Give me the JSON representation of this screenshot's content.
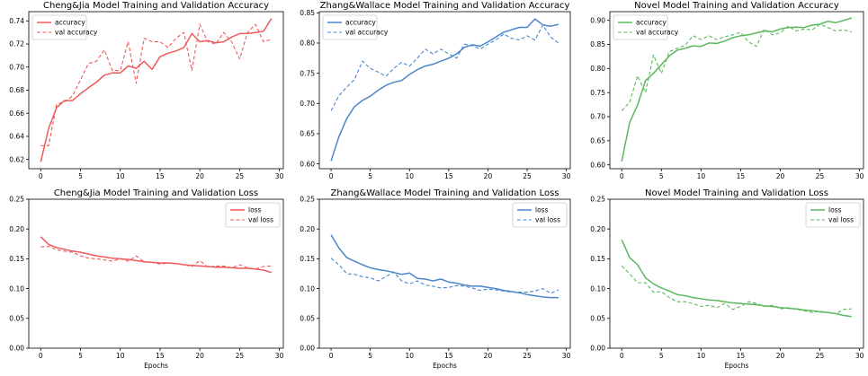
{
  "chart_data": [
    {
      "type": "line",
      "title": "Cheng&Jia Model Training and Validation Accuracy",
      "xlabel": "",
      "ylabel": "",
      "xlim": [
        -1.5,
        30.5
      ],
      "ylim": [
        0.612,
        0.748
      ],
      "xticks": [
        0,
        5,
        10,
        15,
        20,
        25,
        30
      ],
      "yticks": [
        0.62,
        0.64,
        0.66,
        0.68,
        0.7,
        0.72,
        0.74
      ],
      "ytick_labels": [
        "0.62",
        "0.64",
        "0.66",
        "0.68",
        "0.70",
        "0.72",
        "0.74"
      ],
      "legend": "top-left",
      "color": "#f05a5a",
      "x": [
        0,
        1,
        2,
        3,
        4,
        5,
        6,
        7,
        8,
        9,
        10,
        11,
        12,
        13,
        14,
        15,
        16,
        17,
        18,
        19,
        20,
        21,
        22,
        23,
        24,
        25,
        26,
        27,
        28,
        29
      ],
      "series": [
        {
          "name": "accuracy",
          "style": "solid",
          "values": [
            0.618,
            0.647,
            0.665,
            0.671,
            0.671,
            0.677,
            0.682,
            0.687,
            0.693,
            0.695,
            0.695,
            0.701,
            0.699,
            0.705,
            0.698,
            0.709,
            0.712,
            0.714,
            0.717,
            0.729,
            0.722,
            0.723,
            0.721,
            0.722,
            0.726,
            0.729,
            0.729,
            0.73,
            0.731,
            0.742
          ]
        },
        {
          "name": "val accuracy",
          "style": "dashed",
          "values": [
            0.632,
            0.632,
            0.668,
            0.67,
            0.675,
            0.689,
            0.703,
            0.705,
            0.715,
            0.697,
            0.697,
            0.722,
            0.686,
            0.725,
            0.722,
            0.722,
            0.717,
            0.725,
            0.73,
            0.697,
            0.737,
            0.722,
            0.72,
            0.73,
            0.722,
            0.707,
            0.73,
            0.737,
            0.722,
            0.724
          ]
        }
      ]
    },
    {
      "type": "line",
      "title": "Zhang&Wallace Model Training and Validation Accuracy",
      "xlabel": "",
      "ylabel": "",
      "xlim": [
        -1.5,
        30.5
      ],
      "ylim": [
        0.592,
        0.852
      ],
      "xticks": [
        0,
        5,
        10,
        15,
        20,
        25,
        30
      ],
      "yticks": [
        0.6,
        0.65,
        0.7,
        0.75,
        0.8,
        0.85
      ],
      "ytick_labels": [
        "0.60",
        "0.65",
        "0.70",
        "0.75",
        "0.80",
        "0.85"
      ],
      "legend": "top-left",
      "color": "#4a86c8",
      "x": [
        0,
        1,
        2,
        3,
        4,
        5,
        6,
        7,
        8,
        9,
        10,
        11,
        12,
        13,
        14,
        15,
        16,
        17,
        18,
        19,
        20,
        21,
        22,
        23,
        24,
        25,
        26,
        27,
        28,
        29
      ],
      "series": [
        {
          "name": "accuracy",
          "style": "solid",
          "values": [
            0.605,
            0.645,
            0.675,
            0.695,
            0.705,
            0.712,
            0.722,
            0.73,
            0.735,
            0.738,
            0.748,
            0.756,
            0.762,
            0.765,
            0.77,
            0.775,
            0.782,
            0.793,
            0.797,
            0.795,
            0.802,
            0.81,
            0.818,
            0.822,
            0.826,
            0.826,
            0.84,
            0.83,
            0.828,
            0.831
          ]
        },
        {
          "name": "val accuracy",
          "style": "dashed",
          "values": [
            0.688,
            0.713,
            0.727,
            0.74,
            0.77,
            0.758,
            0.752,
            0.745,
            0.758,
            0.768,
            0.762,
            0.775,
            0.79,
            0.782,
            0.79,
            0.782,
            0.775,
            0.798,
            0.796,
            0.79,
            0.798,
            0.805,
            0.815,
            0.808,
            0.805,
            0.812,
            0.805,
            0.83,
            0.81,
            0.8
          ]
        }
      ]
    },
    {
      "type": "line",
      "title": "Novel Model Training and Validation Accuracy",
      "xlabel": "",
      "ylabel": "",
      "xlim": [
        -1.5,
        30.5
      ],
      "ylim": [
        0.592,
        0.918
      ],
      "xticks": [
        0,
        5,
        10,
        15,
        20,
        25,
        30
      ],
      "yticks": [
        0.6,
        0.65,
        0.7,
        0.75,
        0.8,
        0.85,
        0.9
      ],
      "ytick_labels": [
        "0.60",
        "0.65",
        "0.70",
        "0.75",
        "0.80",
        "0.85",
        "0.90"
      ],
      "legend": "top-left",
      "color": "#5cb85c",
      "x": [
        0,
        1,
        2,
        3,
        4,
        5,
        6,
        7,
        8,
        9,
        10,
        11,
        12,
        13,
        14,
        15,
        16,
        17,
        18,
        19,
        20,
        21,
        22,
        23,
        24,
        25,
        26,
        27,
        28,
        29
      ],
      "series": [
        {
          "name": "accuracy",
          "style": "solid",
          "values": [
            0.607,
            0.688,
            0.724,
            0.775,
            0.79,
            0.808,
            0.826,
            0.838,
            0.842,
            0.847,
            0.846,
            0.853,
            0.852,
            0.857,
            0.864,
            0.868,
            0.87,
            0.874,
            0.878,
            0.876,
            0.882,
            0.885,
            0.886,
            0.885,
            0.89,
            0.892,
            0.898,
            0.895,
            0.9,
            0.905
          ]
        },
        {
          "name": "val accuracy",
          "style": "dashed",
          "values": [
            0.712,
            0.73,
            0.785,
            0.75,
            0.828,
            0.79,
            0.835,
            0.842,
            0.848,
            0.868,
            0.86,
            0.868,
            0.86,
            0.866,
            0.87,
            0.875,
            0.855,
            0.846,
            0.882,
            0.87,
            0.874,
            0.888,
            0.878,
            0.882,
            0.88,
            0.892,
            0.885,
            0.878,
            0.88,
            0.876
          ]
        }
      ]
    },
    {
      "type": "line",
      "title": "Cheng&Jia Model Training and Validation Loss",
      "xlabel": "Epochs",
      "ylabel": "",
      "xlim": [
        -1.5,
        30.5
      ],
      "ylim": [
        0,
        0.25
      ],
      "xticks": [
        0,
        5,
        10,
        15,
        20,
        25,
        30
      ],
      "yticks": [
        0.0,
        0.05,
        0.1,
        0.15,
        0.2,
        0.25
      ],
      "ytick_labels": [
        "0.00",
        "0.05",
        "0.10",
        "0.15",
        "0.20",
        "0.25"
      ],
      "legend": "top-right",
      "color": "#f05a5a",
      "x": [
        0,
        1,
        2,
        3,
        4,
        5,
        6,
        7,
        8,
        9,
        10,
        11,
        12,
        13,
        14,
        15,
        16,
        17,
        18,
        19,
        20,
        21,
        22,
        23,
        24,
        25,
        26,
        27,
        28,
        29
      ],
      "series": [
        {
          "name": "loss",
          "style": "solid",
          "values": [
            0.187,
            0.174,
            0.169,
            0.166,
            0.163,
            0.161,
            0.158,
            0.155,
            0.153,
            0.151,
            0.15,
            0.149,
            0.147,
            0.145,
            0.144,
            0.143,
            0.143,
            0.142,
            0.14,
            0.139,
            0.138,
            0.137,
            0.136,
            0.136,
            0.135,
            0.134,
            0.134,
            0.133,
            0.131,
            0.127
          ]
        },
        {
          "name": "val loss",
          "style": "dashed",
          "values": [
            0.17,
            0.171,
            0.165,
            0.163,
            0.161,
            0.155,
            0.151,
            0.15,
            0.148,
            0.146,
            0.15,
            0.146,
            0.155,
            0.145,
            0.144,
            0.141,
            0.143,
            0.142,
            0.14,
            0.137,
            0.147,
            0.136,
            0.138,
            0.138,
            0.135,
            0.14,
            0.135,
            0.133,
            0.137,
            0.138
          ]
        }
      ]
    },
    {
      "type": "line",
      "title": "Zhang&Wallace Model Training and Validation Loss",
      "xlabel": "Epochs",
      "ylabel": "",
      "xlim": [
        -1.5,
        30.5
      ],
      "ylim": [
        0,
        0.25
      ],
      "xticks": [
        0,
        5,
        10,
        15,
        20,
        25,
        30
      ],
      "yticks": [
        0.0,
        0.05,
        0.1,
        0.15,
        0.2,
        0.25
      ],
      "ytick_labels": [
        "0.00",
        "0.05",
        "0.10",
        "0.15",
        "0.20",
        "0.25"
      ],
      "legend": "top-right",
      "color": "#4a86c8",
      "x": [
        0,
        1,
        2,
        3,
        4,
        5,
        6,
        7,
        8,
        9,
        10,
        11,
        12,
        13,
        14,
        15,
        16,
        17,
        18,
        19,
        20,
        21,
        22,
        23,
        24,
        25,
        26,
        27,
        28,
        29
      ],
      "series": [
        {
          "name": "loss",
          "style": "solid",
          "values": [
            0.19,
            0.168,
            0.152,
            0.146,
            0.14,
            0.135,
            0.132,
            0.13,
            0.127,
            0.124,
            0.126,
            0.117,
            0.116,
            0.113,
            0.116,
            0.111,
            0.109,
            0.106,
            0.104,
            0.104,
            0.102,
            0.1,
            0.097,
            0.095,
            0.093,
            0.09,
            0.088,
            0.086,
            0.085,
            0.085
          ]
        },
        {
          "name": "val loss",
          "style": "dashed",
          "values": [
            0.151,
            0.14,
            0.125,
            0.124,
            0.12,
            0.118,
            0.113,
            0.12,
            0.128,
            0.113,
            0.108,
            0.113,
            0.106,
            0.104,
            0.101,
            0.102,
            0.105,
            0.104,
            0.101,
            0.097,
            0.099,
            0.098,
            0.096,
            0.094,
            0.094,
            0.094,
            0.096,
            0.1,
            0.092,
            0.098
          ]
        }
      ]
    },
    {
      "type": "line",
      "title": "Novel Model Training and Validation Loss",
      "xlabel": "Epochs",
      "ylabel": "",
      "xlim": [
        -1.5,
        30.5
      ],
      "ylim": [
        0,
        0.25
      ],
      "xticks": [
        0,
        5,
        10,
        15,
        20,
        25,
        30
      ],
      "yticks": [
        0.0,
        0.05,
        0.1,
        0.15,
        0.2,
        0.25
      ],
      "ytick_labels": [
        "0.00",
        "0.05",
        "0.10",
        "0.15",
        "0.20",
        "0.25"
      ],
      "legend": "top-right",
      "color": "#5cb85c",
      "x": [
        0,
        1,
        2,
        3,
        4,
        5,
        6,
        7,
        8,
        9,
        10,
        11,
        12,
        13,
        14,
        15,
        16,
        17,
        18,
        19,
        20,
        21,
        22,
        23,
        24,
        25,
        26,
        27,
        28,
        29
      ],
      "series": [
        {
          "name": "loss",
          "style": "solid",
          "values": [
            0.182,
            0.152,
            0.14,
            0.118,
            0.108,
            0.101,
            0.096,
            0.09,
            0.088,
            0.085,
            0.083,
            0.081,
            0.08,
            0.078,
            0.076,
            0.075,
            0.074,
            0.073,
            0.071,
            0.07,
            0.068,
            0.067,
            0.066,
            0.064,
            0.063,
            0.061,
            0.06,
            0.058,
            0.055,
            0.053
          ]
        },
        {
          "name": "val loss",
          "style": "dashed",
          "values": [
            0.138,
            0.125,
            0.11,
            0.11,
            0.094,
            0.095,
            0.085,
            0.078,
            0.078,
            0.075,
            0.07,
            0.072,
            0.068,
            0.075,
            0.065,
            0.07,
            0.078,
            0.075,
            0.07,
            0.072,
            0.066,
            0.068,
            0.065,
            0.063,
            0.06,
            0.062,
            0.06,
            0.058,
            0.065,
            0.066
          ]
        }
      ]
    }
  ]
}
